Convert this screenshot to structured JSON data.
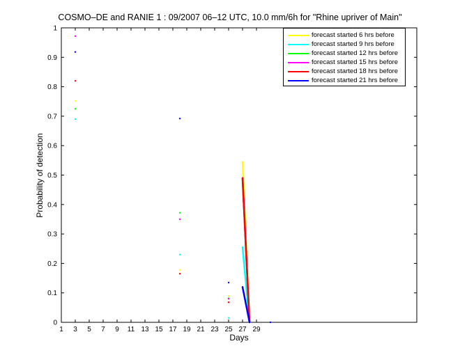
{
  "chart_data": {
    "type": "line",
    "title": "COSMO–DE and RANIE 1 : 09/2007 06–12 UTC, 10.0 mm/6h for \"Rhine upriver of Main\"",
    "xlabel": "Days",
    "ylabel": "Probability of detection",
    "xlim": [
      1,
      52
    ],
    "ylim": [
      0,
      1
    ],
    "x_ticks": [
      1,
      3,
      5,
      7,
      9,
      11,
      13,
      15,
      17,
      19,
      21,
      23,
      25,
      27,
      29
    ],
    "y_ticks": [
      0,
      0.1,
      0.2,
      0.3,
      0.4,
      0.5,
      0.6,
      0.7,
      0.8,
      0.9,
      1
    ],
    "y_tick_labels": [
      "0",
      "0.1",
      "0.2",
      "0.3",
      "0.4",
      "0.5",
      "0.6",
      "0.7",
      "0.8",
      "0.9",
      "1"
    ],
    "grid": false,
    "legend_position": "top-right",
    "series": [
      {
        "name": "forecast started 6 hrs before",
        "color": "#ffff00",
        "points": [
          [
            3,
            0.752
          ],
          [
            18,
            0.178
          ],
          [
            25,
            0.09
          ],
          [
            27,
            0.545
          ],
          [
            28,
            0.0
          ]
        ]
      },
      {
        "name": "forecast started 9 hrs before",
        "color": "#00ffff",
        "points": [
          [
            3,
            0.69
          ],
          [
            18,
            0.23
          ],
          [
            25,
            0.015
          ],
          [
            27,
            0.255
          ],
          [
            28,
            0.0
          ]
        ]
      },
      {
        "name": "forecast started 12 hrs before",
        "color": "#00ff00",
        "points": [
          [
            3,
            0.725
          ],
          [
            18,
            0.372
          ],
          [
            25,
            0.082
          ],
          [
            27,
            0.485
          ],
          [
            28,
            0.0
          ]
        ]
      },
      {
        "name": "forecast started 15 hrs before",
        "color": "#ff00ff",
        "points": [
          [
            3,
            0.972
          ],
          [
            18,
            0.35
          ],
          [
            25,
            0.08
          ],
          [
            27,
            0.49
          ],
          [
            28,
            0.0
          ]
        ]
      },
      {
        "name": "forecast started 18 hrs before",
        "color": "#ff0000",
        "points": [
          [
            3,
            0.82
          ],
          [
            18,
            0.165
          ],
          [
            25,
            0.068
          ],
          [
            27,
            0.49
          ],
          [
            28,
            0.0
          ]
        ]
      },
      {
        "name": "forecast started 21 hrs before",
        "color": "#0000ff",
        "points": [
          [
            3,
            0.918
          ],
          [
            18,
            0.692
          ],
          [
            25,
            0.135
          ],
          [
            27,
            0.12
          ],
          [
            28,
            0.0
          ],
          [
            31,
            0.0
          ]
        ]
      }
    ]
  }
}
